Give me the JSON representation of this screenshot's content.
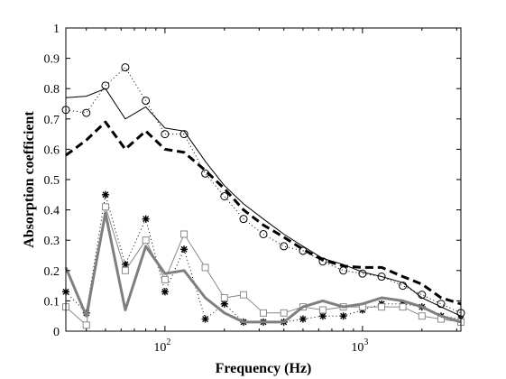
{
  "chart_data": {
    "type": "line",
    "xlabel": "Frequency (Hz)",
    "ylabel": "Absorption coefficient",
    "xscale": "log",
    "xlim": [
      31.5,
      3150
    ],
    "ylim": [
      0,
      1
    ],
    "grid": false,
    "legend": "none",
    "y_ticks": [
      0,
      0.1,
      0.2,
      0.3,
      0.4,
      0.5,
      0.6,
      0.7,
      0.8,
      0.9,
      1
    ],
    "y_tick_labels": [
      "0",
      "0.1",
      "0.2",
      "0.3",
      "0.4",
      "0.5",
      "0.6",
      "0.7",
      "0.8",
      "0.9",
      "1"
    ],
    "x_ticks": [
      100,
      1000
    ],
    "x_tick_labels": [
      "10",
      "10"
    ],
    "x_tick_exponents": [
      "2",
      "3"
    ],
    "x_minor_ticks": [
      40,
      50,
      60,
      70,
      80,
      90,
      200,
      300,
      400,
      500,
      600,
      700,
      800,
      900,
      2000,
      3000
    ],
    "x": [
      31.5,
      40,
      50,
      63,
      80,
      100,
      125,
      160,
      200,
      250,
      315,
      400,
      500,
      630,
      800,
      1000,
      1250,
      1600,
      2000,
      2500,
      3150
    ],
    "series": [
      {
        "style": "solid-thin-black",
        "color": "#000000",
        "values": [
          0.77,
          0.775,
          0.8,
          0.7,
          0.74,
          0.67,
          0.66,
          0.56,
          0.48,
          0.42,
          0.37,
          0.32,
          0.28,
          0.24,
          0.22,
          0.195,
          0.18,
          0.16,
          0.11,
          0.08,
          0.05
        ]
      },
      {
        "style": "dotted-circle",
        "color": "#000000",
        "values": [
          0.73,
          0.72,
          0.81,
          0.87,
          0.76,
          0.65,
          0.65,
          0.52,
          0.445,
          0.37,
          0.32,
          0.28,
          0.265,
          0.23,
          0.2,
          0.19,
          0.18,
          0.15,
          0.12,
          0.09,
          0.06
        ]
      },
      {
        "style": "dashed-thick-black",
        "color": "#000000",
        "values": [
          0.58,
          0.63,
          0.69,
          0.6,
          0.66,
          0.6,
          0.59,
          0.53,
          0.47,
          0.4,
          0.35,
          0.31,
          0.27,
          0.235,
          0.215,
          0.21,
          0.21,
          0.18,
          0.155,
          0.11,
          0.09
        ]
      },
      {
        "style": "dotted-star",
        "color": "#000000",
        "values": [
          0.13,
          0.06,
          0.45,
          0.22,
          0.37,
          0.13,
          0.27,
          0.04,
          0.09,
          0.03,
          0.03,
          0.03,
          0.04,
          0.05,
          0.05,
          0.07,
          0.09,
          0.09,
          0.08,
          0.05,
          0.04
        ]
      },
      {
        "style": "solid-gray-square",
        "color": "#8a8a8a",
        "values": [
          0.08,
          0.02,
          0.41,
          0.2,
          0.3,
          0.17,
          0.32,
          0.21,
          0.11,
          0.12,
          0.06,
          0.06,
          0.08,
          0.07,
          0.08,
          0.08,
          0.08,
          0.08,
          0.05,
          0.04,
          0.03
        ]
      },
      {
        "style": "solid-thick-gray",
        "color": "#7f7f7f",
        "values": [
          0.21,
          0.05,
          0.39,
          0.07,
          0.28,
          0.19,
          0.2,
          0.11,
          0.06,
          0.03,
          0.03,
          0.03,
          0.08,
          0.1,
          0.08,
          0.09,
          0.11,
          0.1,
          0.08,
          0.05,
          0.03
        ]
      }
    ]
  }
}
